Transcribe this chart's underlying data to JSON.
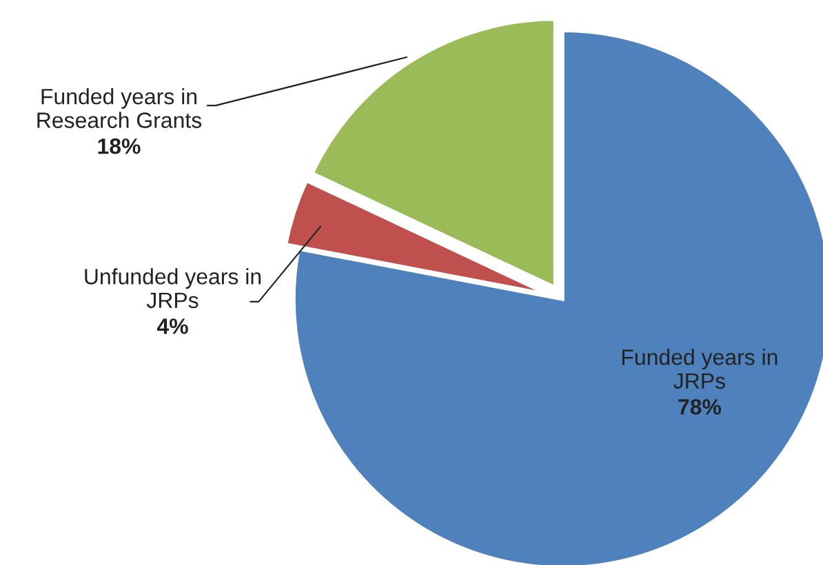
{
  "chart_data": {
    "type": "pie",
    "categories": [
      "Funded years in\nJRPs",
      "Unfunded years in\nJRPs",
      "Funded years in\nResearch Grants"
    ],
    "values": [
      78,
      4,
      18
    ],
    "colors": [
      "#4f81bd",
      "#c0504d",
      "#9bbb59"
    ],
    "value_labels": [
      "78%",
      "4%",
      "18%"
    ],
    "legend": false
  }
}
